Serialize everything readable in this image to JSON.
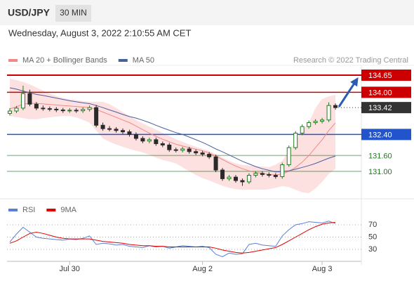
{
  "header": {
    "symbol": "USD/JPY",
    "interval": "30 MIN",
    "timestamp": "Wednesday, August 3, 2022 2:10:55 AM CET",
    "source": "Research © 2022 Trading Central"
  },
  "chart_data": [
    {
      "type": "candlestick",
      "categories": [
        null,
        null,
        null,
        null,
        null,
        null,
        null,
        null,
        null,
        "Jul 30",
        null,
        null,
        null,
        null,
        null,
        null,
        null,
        null,
        null,
        null,
        null,
        null,
        null,
        null,
        null,
        null,
        null,
        null,
        null,
        "Aug 2",
        null,
        null,
        null,
        null,
        null,
        null,
        null,
        null,
        null,
        null,
        null,
        null,
        null,
        null,
        null,
        null,
        null,
        "Aug 3",
        null,
        null
      ],
      "open": [
        133.2,
        133.29,
        133.4,
        133.95,
        133.55,
        133.4,
        133.38,
        133.36,
        133.33,
        133.3,
        133.32,
        133.3,
        133.35,
        133.42,
        132.75,
        132.62,
        132.6,
        132.55,
        132.5,
        132.4,
        132.25,
        132.15,
        132.2,
        132.05,
        132.0,
        131.82,
        131.8,
        131.85,
        131.75,
        131.7,
        131.65,
        131.55,
        131.05,
        130.72,
        130.78,
        130.65,
        130.6,
        130.85,
        130.92,
        130.88,
        130.85,
        130.8,
        131.25,
        131.9,
        132.45,
        132.7,
        132.85,
        132.9,
        132.95,
        133.5
      ],
      "high": [
        133.4,
        133.48,
        134.25,
        134.1,
        133.63,
        133.5,
        133.46,
        133.44,
        133.41,
        133.4,
        133.4,
        133.43,
        133.5,
        133.52,
        132.85,
        132.72,
        132.68,
        132.63,
        132.58,
        132.48,
        132.33,
        132.28,
        132.28,
        132.13,
        132.08,
        131.9,
        131.93,
        131.93,
        131.83,
        131.78,
        131.73,
        131.63,
        131.13,
        130.86,
        130.86,
        130.73,
        130.93,
        131.0,
        131.0,
        130.96,
        130.93,
        131.33,
        131.98,
        132.53,
        132.78,
        132.93,
        132.98,
        133.03,
        133.62,
        133.58
      ],
      "low": [
        133.12,
        133.21,
        133.32,
        133.47,
        133.32,
        133.3,
        133.28,
        133.25,
        133.22,
        133.22,
        133.22,
        133.22,
        133.27,
        132.67,
        132.54,
        132.52,
        132.47,
        132.42,
        132.32,
        132.17,
        132.07,
        132.07,
        131.97,
        131.92,
        131.74,
        131.72,
        131.72,
        131.67,
        131.62,
        131.57,
        131.47,
        130.97,
        130.64,
        130.64,
        130.57,
        130.45,
        130.52,
        130.77,
        130.8,
        130.77,
        130.72,
        130.72,
        131.17,
        131.82,
        132.37,
        132.62,
        132.77,
        132.82,
        132.87,
        133.34
      ],
      "close": [
        133.29,
        133.4,
        133.95,
        133.55,
        133.4,
        133.38,
        133.36,
        133.33,
        133.3,
        133.32,
        133.3,
        133.35,
        133.42,
        132.75,
        132.62,
        132.6,
        132.55,
        132.5,
        132.4,
        132.25,
        132.15,
        132.2,
        132.05,
        132.0,
        131.82,
        131.8,
        131.85,
        131.75,
        131.7,
        131.65,
        131.55,
        131.05,
        130.72,
        130.78,
        130.65,
        130.6,
        130.85,
        130.92,
        130.88,
        130.85,
        130.8,
        131.25,
        131.9,
        132.45,
        132.7,
        132.85,
        132.9,
        132.95,
        133.5,
        133.42
      ],
      "up_color": "#1e7b1e",
      "down_color": "#2a2a2a",
      "series": [
        {
          "name": "MA 20 + Bollinger Bands",
          "color": "#f08a8a",
          "band_color": "#fde0e0",
          "values": [
            133.37,
            133.45,
            133.55,
            133.58,
            133.58,
            133.56,
            133.54,
            133.52,
            133.5,
            133.48,
            133.46,
            133.44,
            133.42,
            133.35,
            133.25,
            133.15,
            133.05,
            132.95,
            132.85,
            132.72,
            132.58,
            132.45,
            132.33,
            132.22,
            132.12,
            132.03,
            131.96,
            131.9,
            131.84,
            131.78,
            131.7,
            131.58,
            131.45,
            131.32,
            131.2,
            131.1,
            131.02,
            130.96,
            130.92,
            130.88,
            130.86,
            130.9,
            131.0,
            131.15,
            131.35,
            131.6,
            131.9,
            132.2,
            132.55,
            132.84
          ],
          "upper": [
            134.52,
            134.46,
            134.39,
            134.3,
            134.18,
            134.06,
            133.95,
            133.86,
            133.78,
            133.74,
            133.7,
            133.67,
            133.64,
            133.64,
            133.64,
            133.55,
            133.4,
            133.25,
            133.1,
            132.95,
            132.82,
            132.7,
            132.58,
            132.46,
            132.34,
            132.22,
            132.12,
            132.02,
            131.93,
            131.85,
            131.77,
            131.66,
            131.52,
            131.4,
            131.3,
            131.24,
            131.22,
            131.2,
            131.18,
            131.16,
            131.25,
            131.4,
            131.75,
            132.15,
            132.55,
            132.85,
            133.4,
            133.75,
            133.84,
            133.9
          ],
          "lower": [
            133.1,
            133.06,
            133.02,
            132.98,
            132.98,
            133.02,
            133.05,
            133.08,
            133.1,
            133.1,
            133.05,
            132.95,
            132.85,
            132.55,
            132.25,
            132.12,
            132.02,
            131.93,
            131.85,
            131.78,
            131.72,
            131.62,
            131.52,
            131.43,
            131.37,
            131.3,
            131.15,
            131.0,
            130.86,
            130.74,
            130.66,
            130.55,
            130.45,
            130.38,
            130.32,
            130.3,
            130.3,
            130.3,
            130.3,
            130.32,
            130.38,
            130.44,
            130.4,
            130.3,
            130.2,
            130.17,
            130.35,
            130.6,
            130.9,
            131.1
          ]
        },
        {
          "name": "MA 50",
          "color": "#4a5f9e",
          "values": [
            134.17,
            134.12,
            134.05,
            133.98,
            133.92,
            133.88,
            133.83,
            133.78,
            133.73,
            133.68,
            133.64,
            133.6,
            133.57,
            133.5,
            133.42,
            133.33,
            133.25,
            133.16,
            133.08,
            133.02,
            132.94,
            132.85,
            132.75,
            132.65,
            132.56,
            132.47,
            132.4,
            132.3,
            132.2,
            132.1,
            131.98,
            131.85,
            131.74,
            131.62,
            131.5,
            131.38,
            131.28,
            131.18,
            131.1,
            131.04,
            130.98,
            130.99,
            131.02,
            131.08,
            131.15,
            131.22,
            131.3,
            131.4,
            131.5,
            131.58
          ]
        }
      ],
      "levels": [
        {
          "value": 134.65,
          "color": "#cc0000",
          "line": "solid",
          "tag": "box"
        },
        {
          "value": 134.0,
          "label": "134.00",
          "color": "#cc0000",
          "line": "solid",
          "tag": "box"
        },
        {
          "value": 133.42,
          "color": "#333333",
          "line": "dotted",
          "tag": "box"
        },
        {
          "value": 132.4,
          "label": "132.40",
          "color": "#2255cc",
          "line": "solid",
          "tag": "box"
        },
        {
          "value": 131.6,
          "label": "131.60",
          "color": "#1e7b1e",
          "line": "solid",
          "tag": "text"
        },
        {
          "value": 131.0,
          "label": "131.00",
          "color": "#1e7b1e",
          "line": "solid",
          "tag": "text"
        }
      ],
      "ylim": [
        130,
        135
      ]
    },
    {
      "type": "line",
      "series": [
        {
          "name": "RSI",
          "color": "#5b7fd6",
          "values": [
            42,
            55,
            66,
            58,
            50,
            48,
            47,
            46,
            45,
            47,
            46,
            48,
            52,
            38,
            40,
            39,
            37,
            38,
            35,
            34,
            33,
            36,
            34,
            35,
            32,
            34,
            36,
            35,
            34,
            35,
            33,
            22,
            18,
            24,
            22,
            23,
            38,
            40,
            37,
            36,
            35,
            52,
            62,
            70,
            72,
            75,
            74,
            73,
            76,
            72
          ]
        },
        {
          "name": "9MA",
          "color": "#e00000",
          "values": [
            40,
            44,
            50,
            56,
            58,
            56,
            53,
            50,
            48,
            47,
            47,
            47,
            47,
            45,
            43,
            42,
            41,
            40,
            38,
            37,
            36,
            36,
            35,
            35,
            34,
            34,
            34,
            34,
            34,
            34,
            34,
            32,
            29,
            27,
            25,
            24,
            25,
            27,
            29,
            31,
            33,
            38,
            44,
            50,
            56,
            62,
            67,
            71,
            73,
            74
          ]
        }
      ],
      "ylim": [
        10,
        100
      ],
      "yticks": [
        30,
        50,
        70
      ]
    }
  ]
}
